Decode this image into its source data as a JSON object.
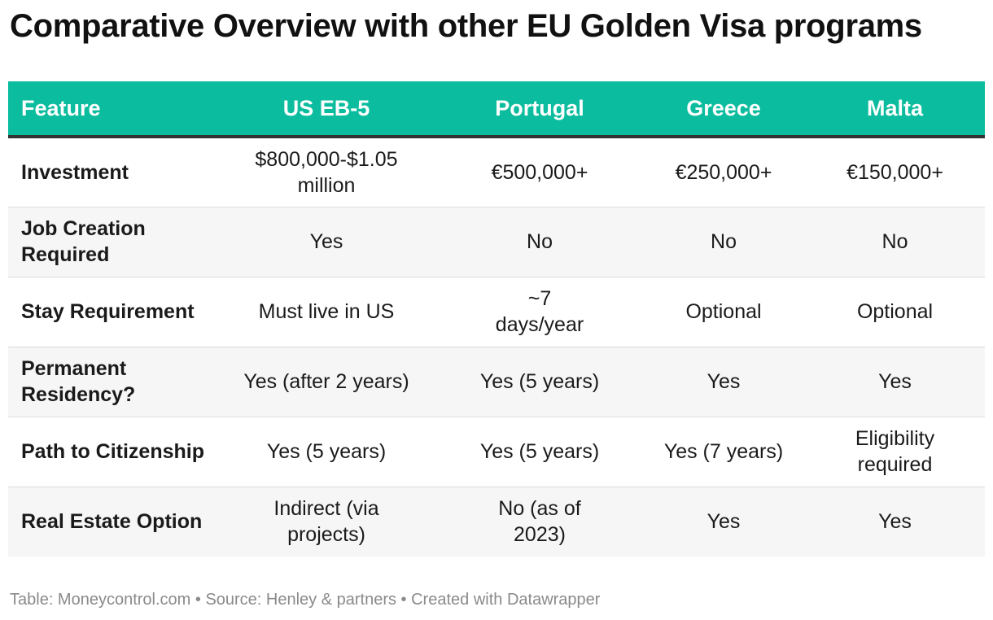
{
  "title": "Comparative Overview with other EU Golden Visa programs",
  "chart_data": {
    "type": "table",
    "title": "Comparative Overview with other EU Golden Visa programs",
    "columns": [
      "Feature",
      "US EB-5",
      "Portugal",
      "Greece",
      "Malta"
    ],
    "rows": [
      [
        "Investment",
        "$800,000-$1.05 million",
        "€500,000+",
        "€250,000+",
        "€150,000+"
      ],
      [
        "Job Creation Required",
        "Yes",
        "No",
        "No",
        "No"
      ],
      [
        "Stay Requirement",
        "Must live in US",
        "~7 days/year",
        "Optional",
        "Optional"
      ],
      [
        "Permanent Residency?",
        "Yes (after 2 years)",
        "Yes (5 years)",
        "Yes",
        "Yes"
      ],
      [
        "Path to Citizenship",
        "Yes (5 years)",
        "Yes (5 years)",
        "Yes (7 years)",
        "Eligibility required"
      ],
      [
        "Real Estate Option",
        "Indirect (via projects)",
        "No (as of 2023)",
        "Yes",
        "Yes"
      ]
    ]
  },
  "footer": "Table: Moneycontrol.com • Source: Henley & partners • Created with Datawrapper",
  "colors": {
    "header_bg": "#0bbd9e",
    "header_text": "#ffffff",
    "stripe": "#f6f6f6",
    "footer_text": "#8a8a8a"
  }
}
